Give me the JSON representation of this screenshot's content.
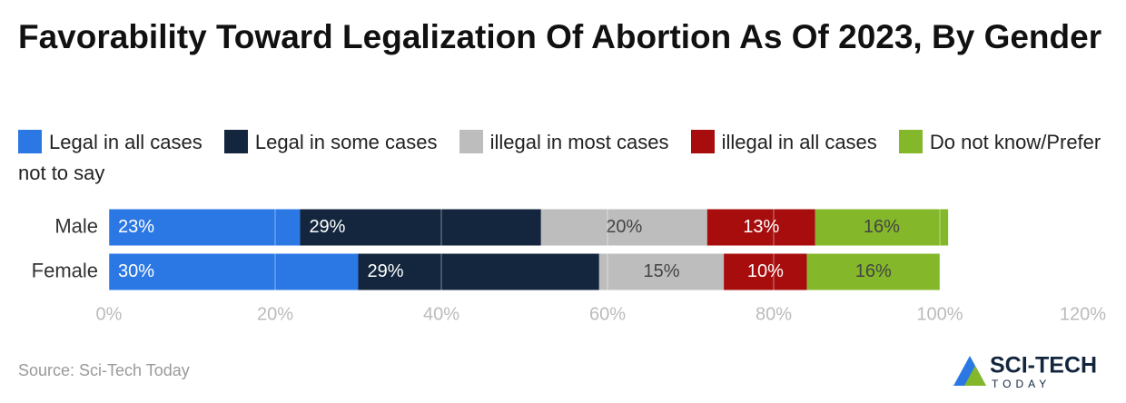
{
  "chart_data": {
    "type": "stacked_bar",
    "orientation": "horizontal",
    "title": "Favorability Toward Legalization Of Abortion As Of 2023, By Gender",
    "categories": [
      "Male",
      "Female"
    ],
    "series": [
      {
        "name": "Legal in all cases",
        "color": "#2b78e4",
        "values": [
          23,
          30
        ],
        "value_labels": [
          "23%",
          "30%"
        ]
      },
      {
        "name": "Legal in some cases",
        "color": "#13263e",
        "values": [
          29,
          29
        ],
        "value_labels": [
          "29%",
          "29%"
        ]
      },
      {
        "name": "illegal in most cases",
        "color": "#bdbdbd",
        "values": [
          20,
          15
        ],
        "value_labels": [
          "20%",
          "15%"
        ]
      },
      {
        "name": "illegal in all cases",
        "color": "#a70d0d",
        "values": [
          13,
          10
        ],
        "value_labels": [
          "13%",
          "10%"
        ]
      },
      {
        "name": "Do not know/Prefer not to say",
        "color": "#84b82a",
        "values": [
          16,
          16
        ],
        "value_labels": [
          "16%",
          "16%"
        ]
      }
    ],
    "xlim": [
      0,
      120
    ],
    "xticks": [
      {
        "value": 0,
        "label": "0%"
      },
      {
        "value": 20,
        "label": "20%"
      },
      {
        "value": 40,
        "label": "40%"
      },
      {
        "value": 60,
        "label": "60%"
      },
      {
        "value": 80,
        "label": "80%"
      },
      {
        "value": 100,
        "label": "100%"
      },
      {
        "value": 120,
        "label": "120%"
      }
    ],
    "grid": true,
    "legend": "top",
    "source": "Source: Sci-Tech Today"
  },
  "logo": {
    "name": "SCI-TECH",
    "tagline": "TODAY"
  }
}
